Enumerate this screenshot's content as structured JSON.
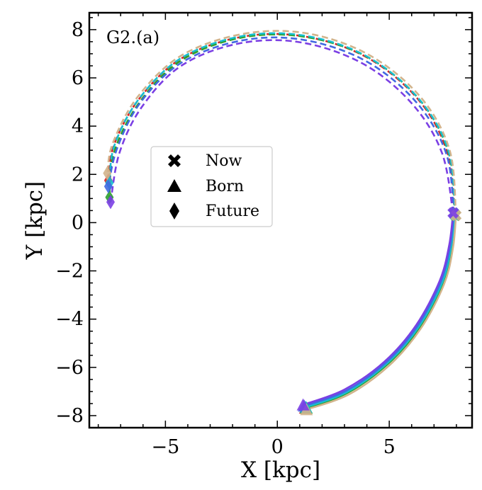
{
  "chart_data": {
    "type": "scatter",
    "panel_label": "G2.(a)",
    "xlabel": "X [kpc]",
    "ylabel": "Y [kpc]",
    "xlim": [
      -8.4,
      8.7
    ],
    "ylim": [
      -8.5,
      8.7
    ],
    "x_ticks": [
      -5,
      0,
      5
    ],
    "x_tick_labels": [
      "−5",
      "0",
      "5"
    ],
    "y_ticks": [
      -8,
      -6,
      -4,
      -2,
      0,
      2,
      4,
      6,
      8
    ],
    "y_tick_labels": [
      "−8",
      "−6",
      "−4",
      "−2",
      "0",
      "2",
      "4",
      "6",
      "8"
    ],
    "grid": false,
    "legend_position": "upper-left",
    "legend": [
      {
        "marker": "X",
        "label": "Now"
      },
      {
        "marker": "triangle",
        "label": "Born"
      },
      {
        "marker": "diamond",
        "label": "Future"
      }
    ],
    "colors": [
      "#d62728",
      "#2ca02c",
      "#17becf",
      "#4169e1",
      "#d2b48c",
      "#7b3fe4"
    ],
    "series": [
      {
        "color": "#d62728",
        "past": [
          [
            1.25,
            -7.68
          ],
          [
            3.1,
            -7.05
          ],
          [
            4.9,
            -5.85
          ],
          [
            6.3,
            -4.35
          ],
          [
            7.35,
            -2.5
          ],
          [
            7.75,
            -1.0
          ],
          [
            7.92,
            0.35
          ]
        ],
        "future": [
          [
            7.92,
            0.35
          ],
          [
            7.6,
            2.9
          ],
          [
            6.3,
            5.1
          ],
          [
            4.0,
            6.85
          ],
          [
            1.2,
            7.72
          ],
          [
            -1.6,
            7.7
          ],
          [
            -4.3,
            6.8
          ],
          [
            -6.2,
            5.1
          ],
          [
            -7.3,
            3.2
          ],
          [
            -7.55,
            1.75
          ]
        ],
        "now": [
          7.92,
          0.35
        ],
        "born": [
          1.25,
          -7.68
        ],
        "future_end": [
          -7.55,
          1.75
        ]
      },
      {
        "color": "#2ca02c",
        "past": [
          [
            1.3,
            -7.68
          ],
          [
            3.15,
            -7.05
          ],
          [
            4.95,
            -5.85
          ],
          [
            6.35,
            -4.35
          ],
          [
            7.4,
            -2.5
          ],
          [
            7.8,
            -1.0
          ],
          [
            7.95,
            0.3
          ]
        ],
        "future": [
          [
            7.95,
            0.3
          ],
          [
            7.65,
            2.9
          ],
          [
            6.35,
            5.1
          ],
          [
            4.05,
            6.85
          ],
          [
            1.25,
            7.7
          ],
          [
            -1.55,
            7.68
          ],
          [
            -4.25,
            6.75
          ],
          [
            -6.15,
            5.0
          ],
          [
            -7.3,
            2.9
          ],
          [
            -7.5,
            1.05
          ]
        ],
        "now": [
          7.95,
          0.3
        ],
        "born": [
          1.3,
          -7.68
        ],
        "future_end": [
          -7.5,
          1.05
        ]
      },
      {
        "color": "#17becf",
        "past": [
          [
            1.28,
            -7.65
          ],
          [
            3.12,
            -7.02
          ],
          [
            4.92,
            -5.82
          ],
          [
            6.32,
            -4.32
          ],
          [
            7.37,
            -2.48
          ],
          [
            7.77,
            -0.98
          ],
          [
            7.93,
            0.32
          ]
        ],
        "future": [
          [
            7.93,
            0.32
          ],
          [
            7.65,
            2.95
          ],
          [
            6.32,
            5.13
          ],
          [
            4.02,
            6.88
          ],
          [
            1.22,
            7.75
          ],
          [
            -1.58,
            7.73
          ],
          [
            -4.28,
            6.83
          ],
          [
            -6.18,
            5.13
          ],
          [
            -7.28,
            3.2
          ],
          [
            -7.5,
            1.65
          ]
        ],
        "now": [
          7.93,
          0.32
        ],
        "born": [
          1.28,
          -7.65
        ],
        "future_end": [
          -7.5,
          1.65
        ]
      },
      {
        "color": "#4169e1",
        "past": [
          [
            1.2,
            -7.6
          ],
          [
            3.05,
            -6.98
          ],
          [
            4.85,
            -5.8
          ],
          [
            6.25,
            -4.3
          ],
          [
            7.3,
            -2.45
          ],
          [
            7.72,
            -0.95
          ],
          [
            7.88,
            0.4
          ]
        ],
        "future": [
          [
            7.88,
            0.4
          ],
          [
            7.55,
            2.85
          ],
          [
            6.2,
            5.0
          ],
          [
            3.95,
            6.7
          ],
          [
            1.15,
            7.58
          ],
          [
            -1.6,
            7.55
          ],
          [
            -4.25,
            6.65
          ],
          [
            -6.1,
            5.0
          ],
          [
            -7.15,
            3.1
          ],
          [
            -7.55,
            1.5
          ]
        ],
        "now": [
          7.88,
          0.4
        ],
        "born": [
          1.2,
          -7.6
        ],
        "future_end": [
          -7.55,
          1.5
        ]
      },
      {
        "color": "#d2b48c",
        "past": [
          [
            1.3,
            -7.75
          ],
          [
            3.2,
            -7.12
          ],
          [
            5.0,
            -5.92
          ],
          [
            6.4,
            -4.4
          ],
          [
            7.45,
            -2.55
          ],
          [
            7.85,
            -1.02
          ],
          [
            7.98,
            0.3
          ]
        ],
        "future": [
          [
            7.98,
            0.3
          ],
          [
            7.7,
            3.0
          ],
          [
            6.4,
            5.2
          ],
          [
            4.1,
            6.95
          ],
          [
            1.3,
            7.85
          ],
          [
            -1.55,
            7.82
          ],
          [
            -4.3,
            6.92
          ],
          [
            -6.25,
            5.2
          ],
          [
            -7.35,
            3.3
          ],
          [
            -7.6,
            2.05
          ]
        ],
        "now": [
          7.98,
          0.3
        ],
        "born": [
          1.3,
          -7.75
        ],
        "future_end": [
          -7.6,
          2.05
        ]
      },
      {
        "color": "#7b3fe4",
        "past": [
          [
            1.15,
            -7.55
          ],
          [
            3.0,
            -6.92
          ],
          [
            4.8,
            -5.75
          ],
          [
            6.2,
            -4.25
          ],
          [
            7.25,
            -2.42
          ],
          [
            7.68,
            -0.92
          ],
          [
            7.85,
            0.4
          ]
        ],
        "future": [
          [
            7.85,
            0.4
          ],
          [
            7.35,
            2.9
          ],
          [
            6.0,
            4.95
          ],
          [
            3.8,
            6.6
          ],
          [
            1.0,
            7.48
          ],
          [
            -1.75,
            7.42
          ],
          [
            -4.3,
            6.5
          ],
          [
            -6.05,
            4.8
          ],
          [
            -7.05,
            2.9
          ],
          [
            -7.45,
            0.85
          ]
        ],
        "now": [
          7.85,
          0.4
        ],
        "born": [
          1.15,
          -7.55
        ],
        "future_end": [
          -7.45,
          0.85
        ]
      }
    ]
  }
}
